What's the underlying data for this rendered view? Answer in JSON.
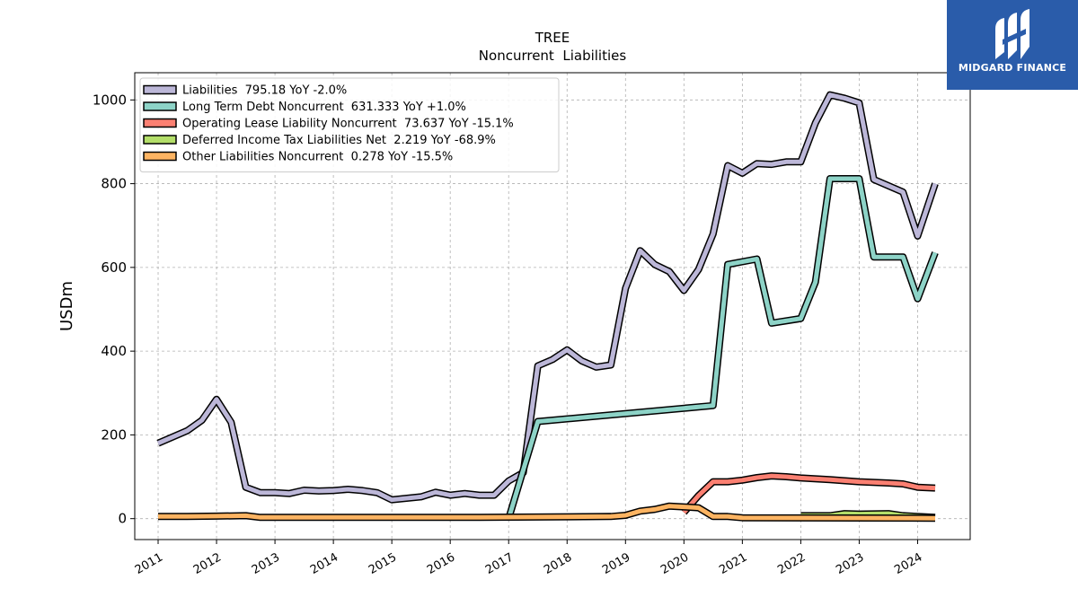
{
  "chart_data": {
    "type": "line",
    "title": "TREE",
    "subtitle": "Noncurrent  Liabilities",
    "ylabel": "USDm",
    "xlabel": "",
    "xlim": [
      2010.6,
      2024.9
    ],
    "ylim": [
      -50,
      1065
    ],
    "yticks": [
      0,
      200,
      400,
      600,
      800,
      1000
    ],
    "xticks": [
      2011,
      2012,
      2013,
      2014,
      2015,
      2016,
      2017,
      2018,
      2019,
      2020,
      2021,
      2022,
      2023,
      2024
    ],
    "grid": true,
    "legend_position": "top-left",
    "series": [
      {
        "name": "Liabilities",
        "legend": "Liabilities  795.18 YoY -2.0%",
        "color": "#bcb7d8",
        "points": [
          [
            2011.0,
            180
          ],
          [
            2011.5,
            210
          ],
          [
            2011.75,
            235
          ],
          [
            2012.0,
            285
          ],
          [
            2012.25,
            230
          ],
          [
            2012.5,
            75
          ],
          [
            2012.75,
            62
          ],
          [
            2013.0,
            62
          ],
          [
            2013.25,
            60
          ],
          [
            2013.5,
            68
          ],
          [
            2013.75,
            66
          ],
          [
            2014.0,
            67
          ],
          [
            2014.25,
            70
          ],
          [
            2014.5,
            67
          ],
          [
            2014.75,
            62
          ],
          [
            2015.0,
            45
          ],
          [
            2015.5,
            52
          ],
          [
            2015.75,
            63
          ],
          [
            2016.0,
            56
          ],
          [
            2016.25,
            60
          ],
          [
            2016.5,
            56
          ],
          [
            2016.75,
            56
          ],
          [
            2017.0,
            90
          ],
          [
            2017.25,
            110
          ],
          [
            2017.5,
            365
          ],
          [
            2017.75,
            380
          ],
          [
            2018.0,
            403
          ],
          [
            2018.25,
            377
          ],
          [
            2018.5,
            362
          ],
          [
            2018.75,
            367
          ],
          [
            2019.0,
            550
          ],
          [
            2019.25,
            640
          ],
          [
            2019.5,
            607
          ],
          [
            2019.75,
            590
          ],
          [
            2020.0,
            545
          ],
          [
            2020.25,
            595
          ],
          [
            2020.5,
            680
          ],
          [
            2020.75,
            843
          ],
          [
            2021.0,
            825
          ],
          [
            2021.25,
            848
          ],
          [
            2021.5,
            846
          ],
          [
            2021.75,
            852
          ],
          [
            2022.0,
            852
          ],
          [
            2022.25,
            945
          ],
          [
            2022.5,
            1012
          ],
          [
            2022.75,
            1004
          ],
          [
            2023.0,
            993
          ],
          [
            2023.25,
            810
          ],
          [
            2023.5,
            795
          ],
          [
            2023.75,
            780
          ],
          [
            2024.0,
            675
          ],
          [
            2024.3,
            800
          ]
        ]
      },
      {
        "name": "Long Term Debt Noncurrent",
        "legend": "Long Term Debt Noncurrent  631.333 YoY +1.0%",
        "color": "#8dd3c7",
        "points": [
          [
            2017.0,
            0
          ],
          [
            2017.5,
            232
          ],
          [
            2020.5,
            270
          ],
          [
            2020.75,
            607
          ],
          [
            2021.25,
            620
          ],
          [
            2021.5,
            467
          ],
          [
            2022.0,
            478
          ],
          [
            2022.25,
            565
          ],
          [
            2022.5,
            812
          ],
          [
            2023.0,
            812
          ],
          [
            2023.25,
            625
          ],
          [
            2023.75,
            625
          ],
          [
            2024.0,
            525
          ],
          [
            2024.3,
            635
          ]
        ]
      },
      {
        "name": "Operating Lease Liability Noncurrent",
        "legend": "Operating Lease Liability Noncurrent  73.637 YoY -15.1%",
        "color": "#fb8072",
        "points": [
          [
            2020.0,
            15
          ],
          [
            2020.25,
            55
          ],
          [
            2020.5,
            88
          ],
          [
            2020.75,
            88
          ],
          [
            2021.0,
            92
          ],
          [
            2021.25,
            98
          ],
          [
            2021.5,
            102
          ],
          [
            2021.75,
            100
          ],
          [
            2022.0,
            97
          ],
          [
            2022.5,
            93
          ],
          [
            2023.0,
            88
          ],
          [
            2023.5,
            85
          ],
          [
            2023.75,
            83
          ],
          [
            2024.0,
            75
          ],
          [
            2024.3,
            73
          ]
        ]
      },
      {
        "name": "Deferred Income Tax Liabilities Net",
        "legend": "Deferred Income Tax Liabilities Net  2.219 YoY -68.9%",
        "color": "#b3de69",
        "points": [
          [
            2022.0,
            7
          ],
          [
            2022.5,
            7
          ],
          [
            2022.75,
            12
          ],
          [
            2023.0,
            11
          ],
          [
            2023.5,
            12
          ],
          [
            2023.75,
            7
          ],
          [
            2024.3,
            3
          ]
        ]
      },
      {
        "name": "Other Liabilities Noncurrent",
        "legend": "Other Liabilities Noncurrent  0.278 YoY -15.5%",
        "color": "#fdb462",
        "points": [
          [
            2011.0,
            5
          ],
          [
            2011.5,
            5
          ],
          [
            2012.0,
            6
          ],
          [
            2012.5,
            7
          ],
          [
            2012.75,
            3
          ],
          [
            2013.5,
            3
          ],
          [
            2016.5,
            3
          ],
          [
            2018.75,
            5
          ],
          [
            2019.0,
            8
          ],
          [
            2019.25,
            18
          ],
          [
            2019.5,
            22
          ],
          [
            2019.75,
            30
          ],
          [
            2020.0,
            28
          ],
          [
            2020.25,
            26
          ],
          [
            2020.5,
            5
          ],
          [
            2020.75,
            5
          ],
          [
            2021.0,
            2
          ],
          [
            2024.3,
            1
          ]
        ]
      }
    ]
  },
  "logo": {
    "text": "MIDGARD FINANCE",
    "bg_color": "#2a5caa"
  }
}
